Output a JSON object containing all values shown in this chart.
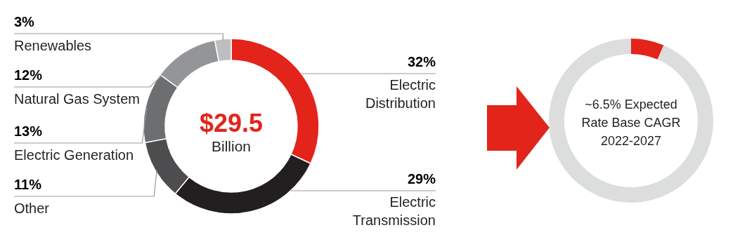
{
  "chart_data": [
    {
      "type": "donut",
      "categories": [
        "Electric Distribution",
        "Electric Transmission",
        "Other",
        "Electric Generation",
        "Natural Gas System",
        "Renewables"
      ],
      "values": [
        32,
        29,
        11,
        13,
        12,
        3
      ],
      "colors": [
        "#e3241b",
        "#231f20",
        "#4d4d4f",
        "#6d6e70",
        "#939598",
        "#bcbec0"
      ],
      "value_labels": [
        "32%",
        "29%",
        "11%",
        "13%",
        "12%",
        "3%"
      ],
      "annotations": [
        "$29.5",
        "Billion"
      ]
    },
    {
      "type": "donut",
      "categories": [
        null,
        null
      ],
      "values": [
        6.5,
        93.5
      ],
      "colors": [
        "#e3241b",
        "#dcdddd"
      ],
      "annotations": [
        "~6.5% Expected",
        "Rate Base CAGR",
        "2022-2027"
      ]
    }
  ]
}
